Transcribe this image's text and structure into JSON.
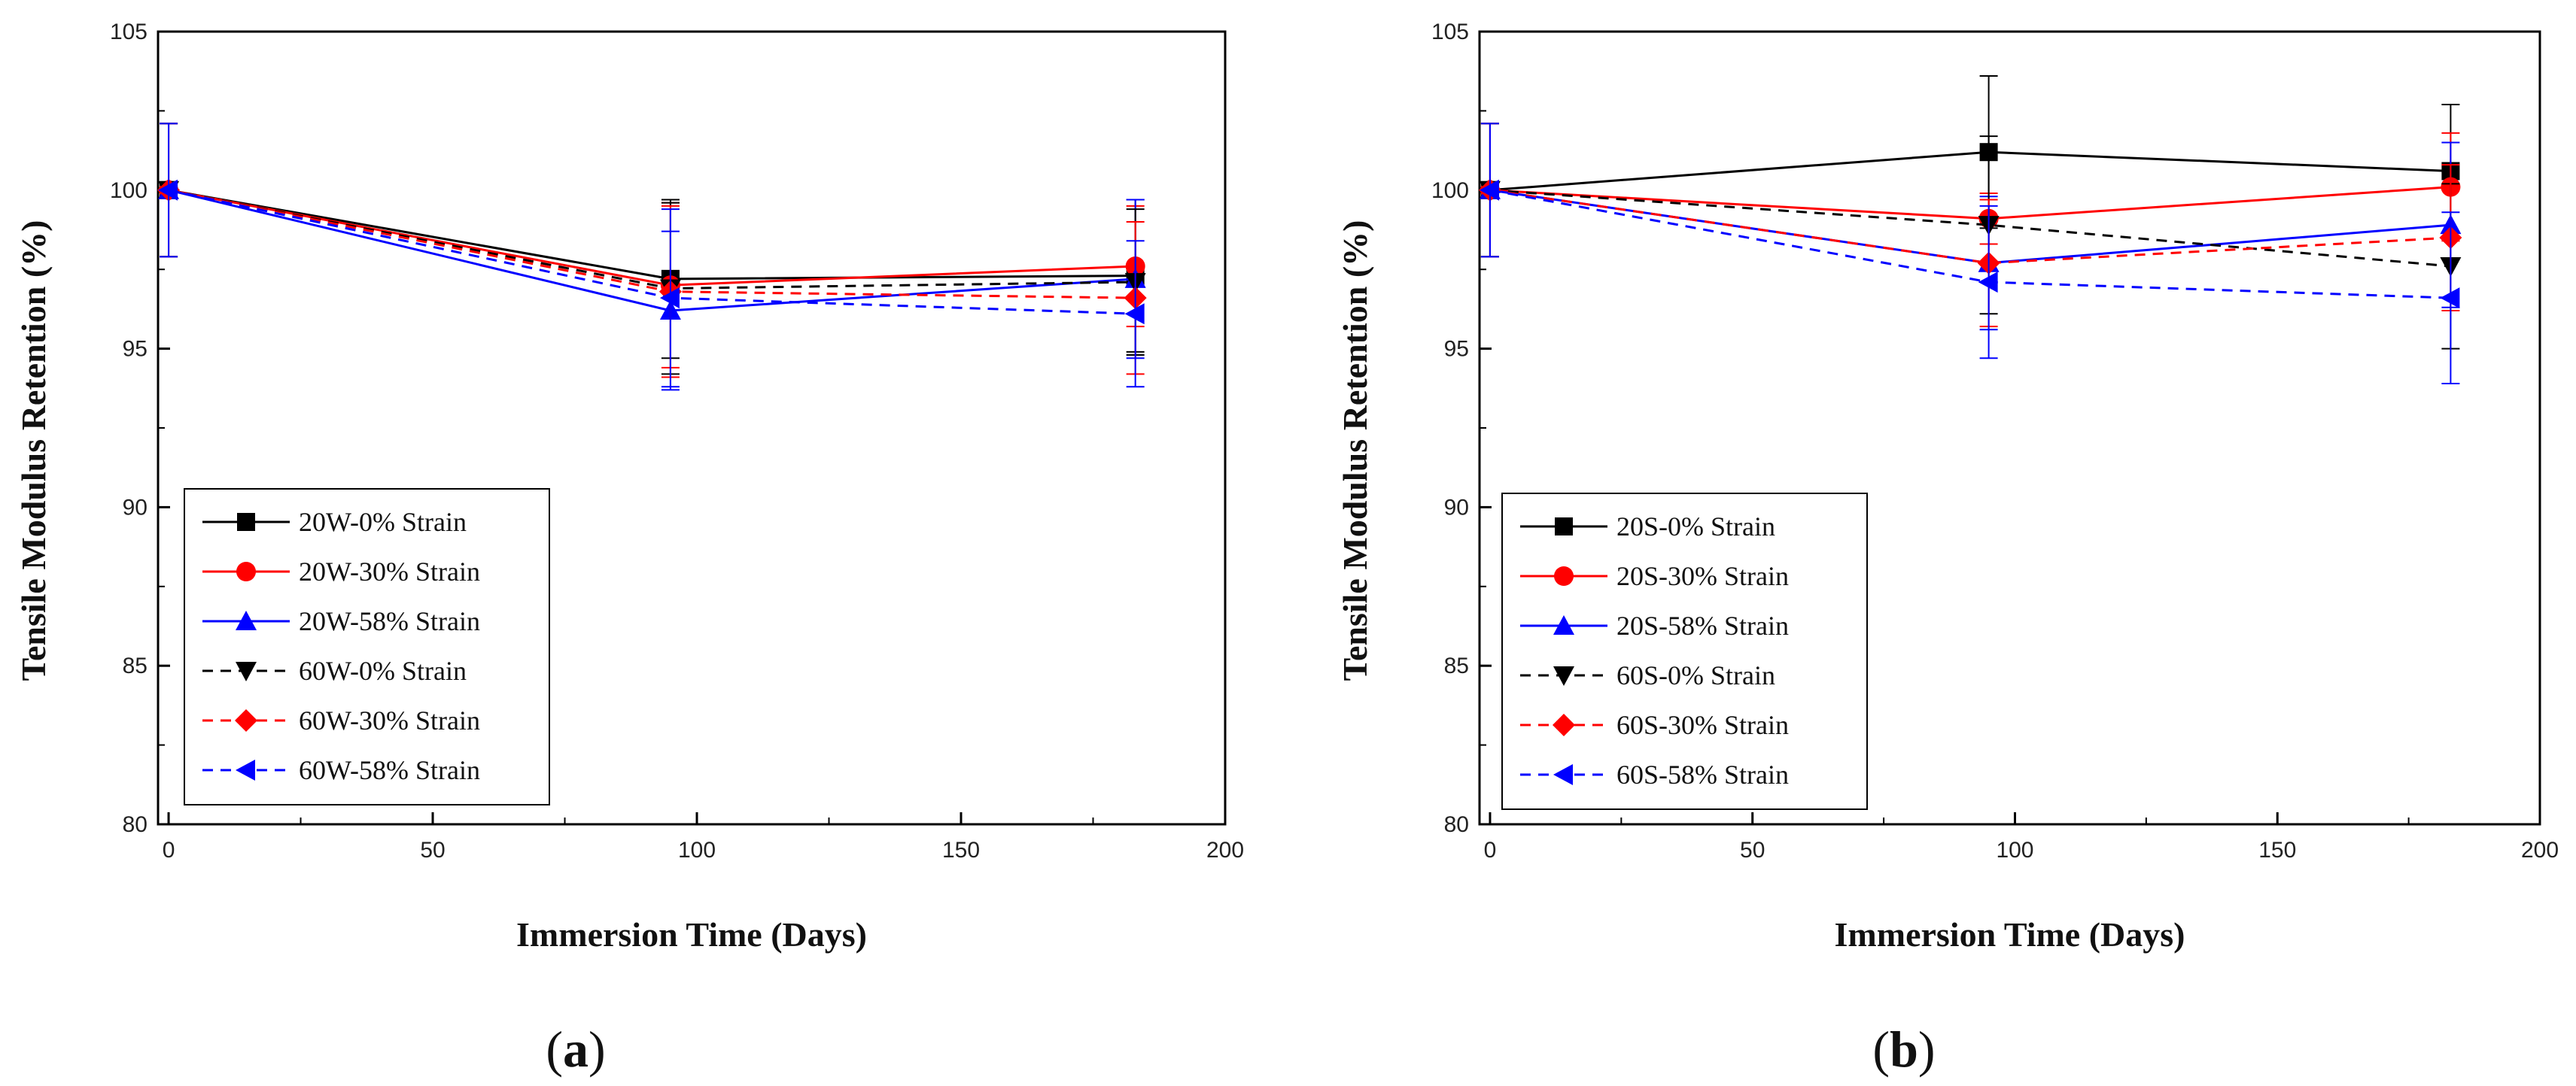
{
  "chart_data": [
    {
      "type": "line",
      "panel": "a",
      "caption": "(a)",
      "caption_letter": "a",
      "xlabel": "Immersion Time (Days)",
      "ylabel": "Tensile Modulus Retention (%)",
      "xlim": [
        -2,
        200
      ],
      "ylim": [
        80,
        105
      ],
      "xticks": [
        0,
        50,
        100,
        150,
        200
      ],
      "yticks": [
        80,
        85,
        90,
        95,
        100,
        105
      ],
      "legend_position": "bottom-left",
      "grid": false,
      "x": [
        0,
        95,
        183
      ],
      "series": [
        {
          "name": "20W-0% Strain",
          "values": [
            100,
            97.2,
            97.3
          ],
          "errors": [
            2.1,
            2.5,
            2.4
          ],
          "color": "#000000",
          "dash": false,
          "marker": "square"
        },
        {
          "name": "20W-30% Strain",
          "values": [
            100,
            97.0,
            97.6
          ],
          "errors": [
            2.1,
            2.6,
            1.9
          ],
          "color": "#ff0000",
          "dash": false,
          "marker": "circle"
        },
        {
          "name": "20W-58% Strain",
          "values": [
            100,
            96.2,
            97.2
          ],
          "errors": [
            2.1,
            2.5,
            2.5
          ],
          "color": "#0000ff",
          "dash": false,
          "marker": "triangle-up"
        },
        {
          "name": "60W-0% Strain",
          "values": [
            100,
            96.9,
            97.1
          ],
          "errors": [
            2.1,
            2.7,
            2.3
          ],
          "color": "#000000",
          "dash": true,
          "marker": "triangle-down"
        },
        {
          "name": "60W-30% Strain",
          "values": [
            100,
            96.8,
            96.6
          ],
          "errors": [
            2.1,
            2.7,
            2.4
          ],
          "color": "#ff0000",
          "dash": true,
          "marker": "diamond"
        },
        {
          "name": "60W-58% Strain",
          "values": [
            100,
            96.6,
            96.1
          ],
          "errors": [
            2.1,
            2.8,
            2.3
          ],
          "color": "#0000ff",
          "dash": true,
          "marker": "triangle-left"
        }
      ]
    },
    {
      "type": "line",
      "panel": "b",
      "caption": "(b)",
      "caption_letter": "b",
      "xlabel": "Immersion Time (Days)",
      "ylabel": "Tensile Modulus Retention (%)",
      "xlim": [
        -2,
        200
      ],
      "ylim": [
        80,
        105
      ],
      "xticks": [
        0,
        50,
        100,
        150,
        200
      ],
      "yticks": [
        80,
        85,
        90,
        95,
        100,
        105
      ],
      "legend_position": "bottom-left",
      "grid": false,
      "x": [
        0,
        95,
        183
      ],
      "series": [
        {
          "name": "20S-0% Strain",
          "values": [
            100,
            101.2,
            100.6
          ],
          "errors": [
            2.1,
            2.4,
            2.1
          ],
          "color": "#000000",
          "dash": false,
          "marker": "square"
        },
        {
          "name": "20S-30% Strain",
          "values": [
            100,
            99.1,
            100.1
          ],
          "errors": [
            2.1,
            0.8,
            1.7
          ],
          "color": "#ff0000",
          "dash": false,
          "marker": "circle"
        },
        {
          "name": "20S-58% Strain",
          "values": [
            100,
            97.7,
            98.9
          ],
          "errors": [
            2.1,
            2.1,
            2.6
          ],
          "color": "#0000ff",
          "dash": false,
          "marker": "triangle-up"
        },
        {
          "name": "60S-0% Strain",
          "values": [
            100,
            98.9,
            97.6
          ],
          "errors": [
            2.1,
            2.8,
            2.6
          ],
          "color": "#000000",
          "dash": true,
          "marker": "triangle-down"
        },
        {
          "name": "60S-30% Strain",
          "values": [
            100,
            97.7,
            98.5
          ],
          "errors": [
            2.1,
            2.0,
            2.3
          ],
          "color": "#ff0000",
          "dash": true,
          "marker": "diamond"
        },
        {
          "name": "60S-58% Strain",
          "values": [
            100,
            97.1,
            96.6
          ],
          "errors": [
            2.1,
            2.4,
            2.7
          ],
          "color": "#0000ff",
          "dash": true,
          "marker": "triangle-left"
        }
      ]
    }
  ]
}
